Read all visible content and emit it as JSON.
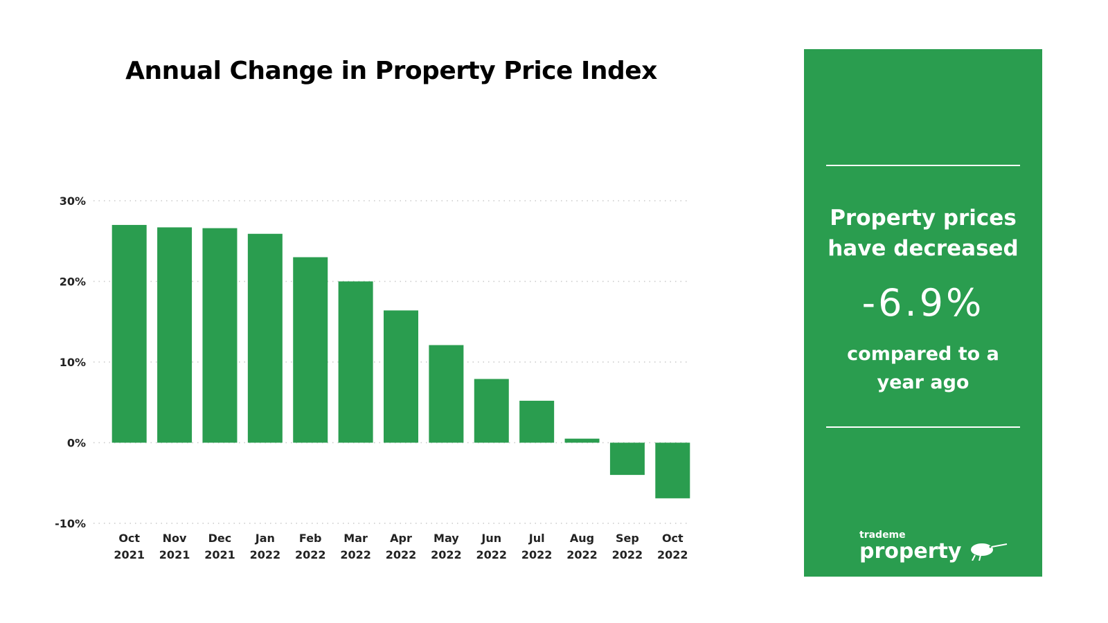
{
  "chart_data": {
    "type": "bar",
    "title": "Annual Change in Property Price Index",
    "categories": [
      [
        "Oct",
        "2021"
      ],
      [
        "Nov",
        "2021"
      ],
      [
        "Dec",
        "2021"
      ],
      [
        "Jan",
        "2022"
      ],
      [
        "Feb",
        "2022"
      ],
      [
        "Mar",
        "2022"
      ],
      [
        "Apr",
        "2022"
      ],
      [
        "May",
        "2022"
      ],
      [
        "Jun",
        "2022"
      ],
      [
        "Jul",
        "2022"
      ],
      [
        "Aug",
        "2022"
      ],
      [
        "Sep",
        "2022"
      ],
      [
        "Oct",
        "2022"
      ]
    ],
    "values": [
      27.0,
      26.7,
      26.6,
      25.9,
      23.0,
      20.0,
      16.4,
      12.1,
      7.9,
      5.2,
      0.5,
      -4.0,
      -6.9
    ],
    "yticks": [
      30,
      20,
      10,
      0,
      -10
    ],
    "ytick_labels": [
      "30%",
      "20%",
      "10%",
      "0%",
      "-10%"
    ],
    "ylim": [
      -10,
      30
    ],
    "xlabel": "",
    "ylabel": "",
    "grid": "horizontal dotted",
    "bar_color": "#2a9d4f"
  },
  "panel": {
    "heading_line1": "Property prices",
    "heading_line2": "have decreased",
    "value": "-6.9%",
    "sub_line1": "compared to a",
    "sub_line2": "year ago",
    "logo_small": "trademe",
    "logo_big": "property",
    "bg_color": "#2a9d4f"
  }
}
